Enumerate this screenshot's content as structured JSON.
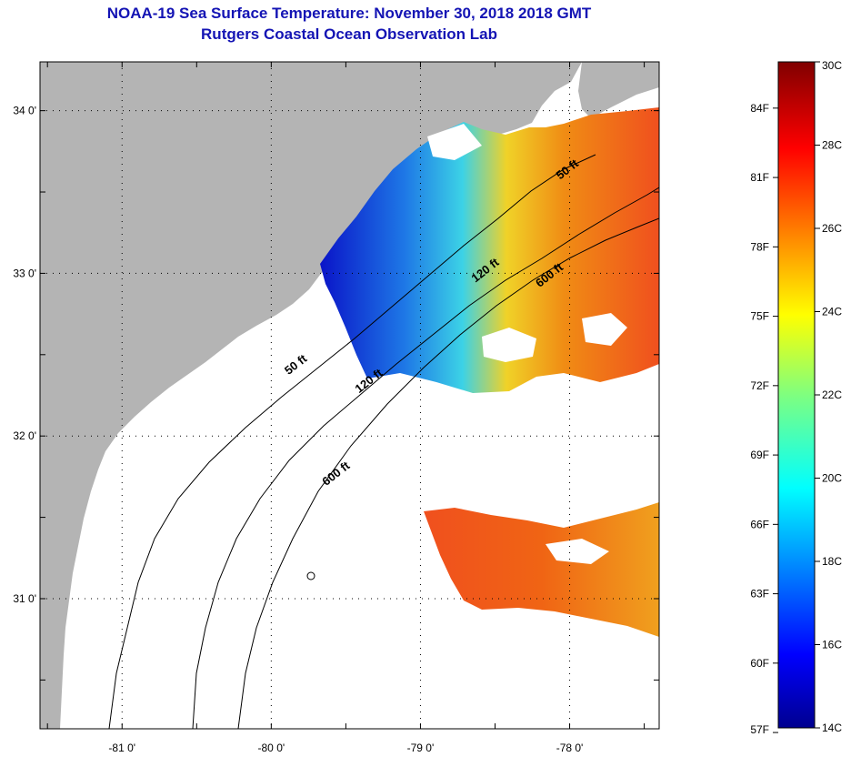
{
  "title_line1": "NOAA-19 Sea Surface Temperature:  November 30, 2018 2018 GMT",
  "title_line2": "Rutgers Coastal Ocean Observation Lab",
  "map": {
    "lat_ticks": [
      {
        "value": 34,
        "label": "34 0'"
      },
      {
        "value": 33,
        "label": "33 0'"
      },
      {
        "value": 32,
        "label": "32 0'"
      },
      {
        "value": 31,
        "label": "31 0'"
      }
    ],
    "lon_ticks": [
      {
        "value": -81,
        "label": "-81 0'"
      },
      {
        "value": -80,
        "label": "-80 0'"
      },
      {
        "value": -79,
        "label": "-79 0'"
      },
      {
        "value": -78,
        "label": "-78 0'"
      }
    ],
    "lon_range": [
      -81.55,
      -77.4
    ],
    "lat_range": [
      30.2,
      34.3
    ],
    "land_color": "#b4b4b4",
    "contour_labels": [
      {
        "text": "50 ft",
        "lon": -79.82,
        "lat": 32.42
      },
      {
        "text": "50 ft",
        "lon": -78.0,
        "lat": 33.62
      },
      {
        "text": "120 ft",
        "lon": -79.33,
        "lat": 32.32
      },
      {
        "text": "120 ft",
        "lon": -78.55,
        "lat": 33.0
      },
      {
        "text": "600 ft",
        "lon": -79.55,
        "lat": 31.75
      },
      {
        "text": "600 ft",
        "lon": -78.12,
        "lat": 32.97
      }
    ]
  },
  "colorbar": {
    "min_c": 14,
    "max_c": 30,
    "celsius_labels": [
      "30C",
      "28C",
      "26C",
      "24C",
      "22C",
      "20C",
      "18C",
      "16C",
      "14C"
    ],
    "fahrenheit_labels": [
      "84F",
      "81F",
      "78F",
      "75F",
      "72F",
      "69F",
      "66F",
      "63F",
      "60F",
      "57F"
    ],
    "fahrenheit_values": [
      84,
      81,
      78,
      75,
      72,
      69,
      66,
      63,
      60,
      57
    ]
  }
}
